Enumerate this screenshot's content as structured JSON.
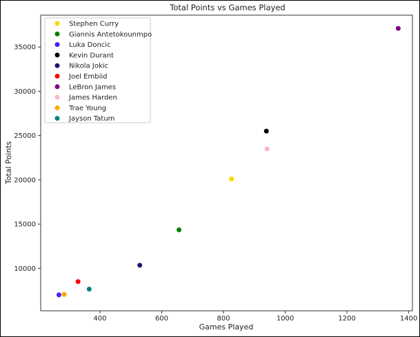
{
  "chart_data": {
    "type": "scatter",
    "title": "Total Points vs Games Played",
    "xlabel": "Games Played",
    "ylabel": "Total Points",
    "xlim": [
      208,
      1412
    ],
    "ylim": [
      5200,
      38600
    ],
    "xticks": [
      400,
      600,
      800,
      1000,
      1200,
      1400
    ],
    "yticks": [
      10000,
      15000,
      20000,
      25000,
      30000,
      35000
    ],
    "grid": false,
    "legend_position": "top-left",
    "series": [
      {
        "name": "Stephen Curry",
        "color": "#FFD700",
        "x": [
          826
        ],
        "y": [
          20100
        ]
      },
      {
        "name": "Giannis Antetokounmpo",
        "color": "#008000",
        "x": [
          656
        ],
        "y": [
          14350
        ]
      },
      {
        "name": "Luka Doncic",
        "color": "#4B1EF0",
        "x": [
          267
        ],
        "y": [
          7000
        ]
      },
      {
        "name": "Kevin Durant",
        "color": "#000000",
        "x": [
          939
        ],
        "y": [
          25500
        ]
      },
      {
        "name": "Nikola Jokic",
        "color": "#191970",
        "x": [
          529
        ],
        "y": [
          10350
        ]
      },
      {
        "name": "Joel Embiid",
        "color": "#FF0000",
        "x": [
          329
        ],
        "y": [
          8500
        ]
      },
      {
        "name": "LeBron James",
        "color": "#800080",
        "x": [
          1366
        ],
        "y": [
          37100
        ]
      },
      {
        "name": "James Harden",
        "color": "#FFB6C1",
        "x": [
          941
        ],
        "y": [
          23500
        ]
      },
      {
        "name": "Trae Young",
        "color": "#FFA500",
        "x": [
          284
        ],
        "y": [
          7050
        ]
      },
      {
        "name": "Jayson Tatum",
        "color": "#008080",
        "x": [
          365
        ],
        "y": [
          7650
        ]
      }
    ]
  }
}
